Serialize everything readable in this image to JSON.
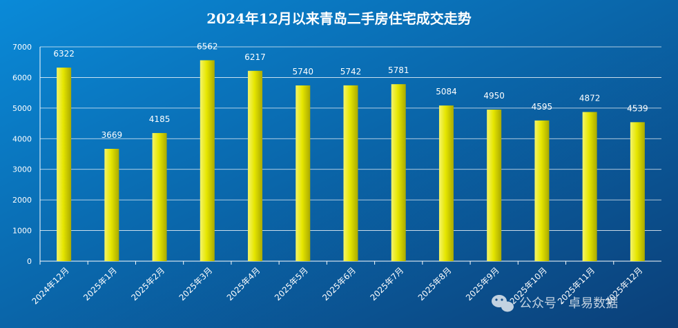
{
  "chart_data": {
    "type": "bar",
    "title": "2024年12月以来青岛二手房住宅成交走势",
    "categories": [
      "2024年12月",
      "2025年1月",
      "2025年2月",
      "2025年3月",
      "2025年4月",
      "2025年5月",
      "2025年6月",
      "2025年7月",
      "2025年8月",
      "2025年9月",
      "2025年10月",
      "2025年11月",
      "2025年12月"
    ],
    "values": [
      6322,
      3669,
      4185,
      6562,
      6217,
      5740,
      5742,
      5781,
      5084,
      4950,
      4595,
      4872,
      4539
    ],
    "ylim": [
      0,
      7000
    ],
    "yticks": [
      "0",
      "1000",
      "2000",
      "3000",
      "4000",
      "5000",
      "6000",
      "7000"
    ],
    "grid": true,
    "legend": "none",
    "colors": {
      "background_start": "#0a8ad8",
      "background_end": "#0b3f78",
      "bar_light": "#f4f46a",
      "bar_mid": "#e6e600",
      "bar_dark": "#a9a900",
      "text": "#ffffff",
      "grid": "#ffffff"
    }
  },
  "watermark": "公众号 · 卓易数据"
}
